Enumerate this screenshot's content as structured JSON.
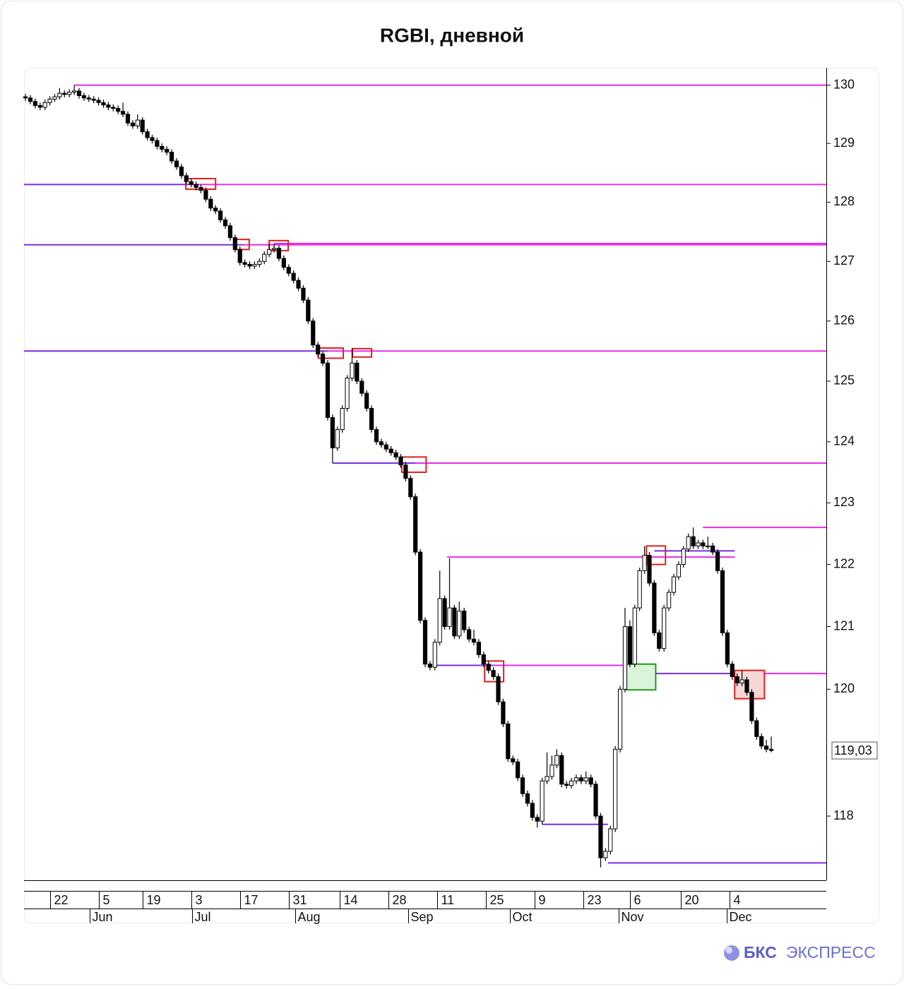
{
  "title": "RGBI, дневной",
  "brand": [
    "БКС",
    "ЭКСПРЕСС"
  ],
  "chart_data": {
    "type": "candlestick",
    "x": [
      0,
      1,
      2,
      3,
      4,
      5,
      6,
      7,
      8,
      9,
      10,
      11,
      12,
      13,
      14,
      15,
      16,
      17,
      18,
      19,
      20,
      21,
      22,
      23,
      24,
      25,
      26,
      27,
      28,
      29,
      30,
      31,
      32,
      33,
      34,
      35,
      36,
      37,
      38,
      39,
      40,
      41,
      42,
      43,
      44,
      45,
      46,
      47,
      48,
      49,
      50,
      51,
      52,
      53,
      54,
      55,
      56,
      57,
      58,
      59,
      60,
      61,
      62,
      63,
      64,
      65,
      66,
      67,
      68,
      69,
      70,
      71,
      72,
      73,
      74,
      75,
      76,
      77,
      78,
      79,
      80,
      81,
      82,
      83,
      84,
      85,
      86,
      87,
      88,
      89,
      90,
      91,
      92,
      93,
      94,
      95,
      96,
      97,
      98,
      99,
      100,
      101,
      102,
      103,
      104,
      105,
      106,
      107,
      108,
      109,
      110,
      111,
      112,
      113,
      114,
      115,
      116,
      117,
      118,
      119,
      120,
      121,
      122,
      123,
      124,
      125,
      126,
      127,
      128,
      129,
      130,
      131,
      132,
      133,
      134,
      135,
      136,
      137,
      138,
      139,
      140,
      141,
      142,
      143,
      144,
      145,
      146,
      147,
      148,
      149,
      150,
      151,
      152,
      153
    ],
    "open": [
      129.8,
      129.78,
      129.72,
      129.65,
      129.62,
      129.7,
      129.76,
      129.8,
      129.86,
      129.84,
      129.88,
      129.9,
      129.82,
      129.78,
      129.76,
      129.74,
      129.7,
      129.66,
      129.62,
      129.6,
      129.55,
      129.5,
      129.35,
      129.3,
      129.4,
      129.2,
      129.1,
      129.05,
      128.95,
      128.9,
      128.85,
      128.7,
      128.6,
      128.45,
      128.35,
      128.3,
      128.25,
      128.2,
      128.05,
      127.9,
      127.85,
      127.7,
      127.6,
      127.4,
      127.2,
      126.98,
      126.95,
      126.92,
      126.95,
      127.0,
      127.12,
      127.2,
      127.22,
      127.05,
      126.9,
      126.8,
      126.68,
      126.55,
      126.35,
      126.0,
      125.6,
      125.45,
      125.3,
      124.4,
      123.9,
      124.2,
      124.55,
      125.05,
      125.3,
      125.0,
      124.8,
      124.55,
      124.2,
      124.0,
      123.95,
      123.88,
      123.82,
      123.75,
      123.62,
      123.4,
      123.1,
      122.2,
      121.1,
      120.4,
      120.35,
      120.75,
      121.45,
      121.0,
      121.3,
      120.85,
      121.25,
      120.95,
      120.8,
      120.75,
      120.55,
      120.4,
      120.3,
      120.2,
      119.8,
      119.45,
      118.9,
      118.85,
      118.6,
      118.35,
      118.2,
      117.98,
      117.92,
      118.55,
      118.62,
      118.8,
      118.95,
      118.5,
      118.48,
      118.55,
      118.6,
      118.55,
      118.6,
      118.5,
      118.0,
      117.35,
      117.45,
      117.8,
      119.05,
      120.0,
      121.0,
      120.4,
      121.3,
      121.9,
      122.15,
      121.7,
      120.9,
      120.65,
      121.3,
      121.55,
      121.8,
      122.0,
      122.25,
      122.45,
      122.3,
      122.35,
      122.3,
      122.3,
      122.2,
      121.9,
      120.9,
      120.4,
      120.2,
      120.1,
      120.15,
      119.95,
      119.5,
      119.25,
      119.1,
      119.05
    ],
    "high": [
      129.85,
      129.83,
      129.77,
      129.7,
      129.75,
      129.81,
      129.85,
      129.95,
      129.91,
      129.93,
      130.0,
      129.95,
      129.87,
      129.83,
      129.81,
      129.79,
      129.75,
      129.71,
      129.67,
      129.65,
      129.7,
      129.55,
      129.4,
      129.5,
      129.45,
      129.25,
      129.15,
      129.1,
      129.0,
      128.95,
      128.9,
      128.75,
      128.65,
      128.5,
      128.4,
      128.35,
      128.3,
      128.25,
      128.1,
      127.95,
      127.9,
      127.75,
      127.65,
      127.45,
      127.25,
      127.03,
      127.0,
      127.0,
      127.05,
      127.17,
      127.3,
      127.3,
      127.27,
      127.1,
      126.95,
      126.85,
      126.73,
      126.6,
      126.4,
      126.05,
      125.65,
      125.5,
      125.35,
      124.45,
      124.25,
      124.6,
      125.1,
      125.55,
      125.35,
      125.05,
      124.85,
      124.6,
      124.25,
      124.05,
      124.0,
      123.93,
      123.87,
      123.8,
      123.67,
      123.45,
      123.15,
      122.25,
      121.15,
      120.45,
      120.8,
      121.9,
      121.5,
      122.1,
      121.35,
      121.4,
      121.3,
      121.0,
      120.95,
      120.8,
      120.6,
      120.45,
      120.35,
      120.25,
      119.85,
      119.5,
      118.95,
      118.9,
      118.65,
      118.4,
      118.25,
      118.03,
      118.6,
      119.0,
      118.95,
      119.05,
      119.0,
      118.55,
      118.6,
      118.65,
      118.65,
      118.7,
      118.65,
      118.55,
      118.05,
      117.5,
      117.85,
      119.1,
      120.05,
      121.3,
      121.1,
      121.35,
      121.95,
      122.3,
      122.2,
      121.75,
      120.95,
      121.35,
      121.6,
      121.85,
      122.05,
      122.3,
      122.5,
      122.6,
      122.4,
      122.4,
      122.45,
      122.35,
      122.25,
      121.95,
      120.95,
      120.45,
      120.25,
      120.3,
      120.2,
      120.0,
      119.55,
      119.3,
      119.2,
      119.25
    ],
    "low": [
      129.73,
      129.67,
      129.6,
      129.57,
      129.57,
      129.65,
      129.71,
      129.75,
      129.79,
      129.79,
      129.83,
      129.77,
      129.73,
      129.71,
      129.69,
      129.65,
      129.61,
      129.57,
      129.55,
      129.5,
      129.45,
      129.3,
      129.25,
      129.25,
      129.15,
      129.05,
      129.0,
      128.9,
      128.85,
      128.8,
      128.65,
      128.55,
      128.4,
      128.3,
      128.25,
      128.2,
      128.15,
      128.0,
      127.85,
      127.8,
      127.65,
      127.55,
      127.35,
      127.15,
      126.93,
      126.9,
      126.87,
      126.87,
      126.9,
      126.95,
      127.07,
      127.15,
      127.0,
      126.85,
      126.75,
      126.63,
      126.5,
      126.3,
      125.95,
      125.55,
      125.4,
      125.25,
      124.35,
      123.65,
      123.85,
      124.15,
      124.5,
      125.0,
      124.95,
      124.75,
      124.5,
      124.15,
      123.95,
      123.9,
      123.83,
      123.77,
      123.7,
      123.57,
      123.35,
      123.05,
      122.15,
      121.05,
      120.35,
      120.3,
      120.3,
      120.7,
      120.95,
      120.95,
      120.8,
      120.8,
      120.9,
      120.75,
      120.7,
      120.5,
      120.35,
      120.25,
      120.15,
      119.75,
      119.4,
      118.85,
      118.8,
      118.55,
      118.3,
      118.15,
      117.93,
      117.82,
      117.87,
      118.5,
      118.57,
      118.75,
      118.45,
      118.43,
      118.43,
      118.5,
      118.5,
      118.5,
      118.45,
      117.95,
      117.2,
      117.3,
      117.4,
      117.75,
      119.0,
      119.95,
      120.35,
      120.35,
      121.25,
      121.85,
      121.65,
      120.85,
      120.6,
      120.6,
      121.25,
      121.5,
      121.75,
      121.95,
      122.2,
      122.25,
      122.25,
      122.25,
      122.25,
      122.15,
      121.85,
      120.85,
      120.35,
      120.15,
      120.05,
      120.05,
      119.9,
      119.45,
      119.2,
      119.05,
      119.0,
      119.0
    ],
    "close": [
      129.78,
      129.72,
      129.65,
      129.62,
      129.7,
      129.76,
      129.8,
      129.86,
      129.84,
      129.88,
      129.9,
      129.82,
      129.78,
      129.76,
      129.74,
      129.7,
      129.66,
      129.62,
      129.6,
      129.55,
      129.5,
      129.35,
      129.3,
      129.4,
      129.2,
      129.1,
      129.05,
      128.95,
      128.9,
      128.85,
      128.7,
      128.6,
      128.45,
      128.35,
      128.3,
      128.25,
      128.2,
      128.05,
      127.9,
      127.85,
      127.7,
      127.6,
      127.4,
      127.2,
      126.98,
      126.95,
      126.92,
      126.95,
      127.0,
      127.12,
      127.2,
      127.22,
      127.05,
      126.9,
      126.8,
      126.68,
      126.55,
      126.35,
      126.0,
      125.6,
      125.45,
      125.3,
      124.4,
      123.9,
      124.2,
      124.55,
      125.05,
      125.3,
      125.0,
      124.8,
      124.55,
      124.2,
      124.0,
      123.95,
      123.88,
      123.82,
      123.75,
      123.62,
      123.4,
      123.1,
      122.2,
      121.1,
      120.4,
      120.35,
      120.75,
      121.45,
      121.0,
      121.3,
      120.85,
      121.25,
      120.95,
      120.8,
      120.75,
      120.55,
      120.4,
      120.3,
      120.2,
      119.8,
      119.45,
      118.9,
      118.85,
      118.6,
      118.35,
      118.2,
      117.98,
      117.92,
      118.55,
      118.62,
      118.8,
      118.95,
      118.5,
      118.48,
      118.55,
      118.6,
      118.55,
      118.6,
      118.5,
      118.0,
      117.35,
      117.45,
      117.8,
      119.05,
      120.0,
      121.0,
      120.4,
      121.3,
      121.9,
      122.15,
      121.7,
      120.9,
      120.65,
      121.3,
      121.55,
      121.8,
      122.0,
      122.25,
      122.45,
      122.3,
      122.35,
      122.3,
      122.3,
      122.2,
      121.9,
      120.9,
      120.4,
      120.2,
      120.1,
      120.15,
      119.95,
      119.5,
      119.25,
      119.1,
      119.05,
      119.03
    ],
    "colors": {
      "up": "#ffffff",
      "down": "#000000",
      "wick": "#000000"
    },
    "xlim": [
      -0.3,
      164.3
    ],
    "ylim": [
      117,
      130.3
    ],
    "log_y": true,
    "yticks": [
      118,
      120,
      121,
      122,
      123,
      124,
      125,
      126,
      127,
      128,
      129,
      130
    ],
    "xticks": [
      {
        "value": 5,
        "label": "22"
      },
      {
        "value": 15,
        "label": "5"
      },
      {
        "value": 24,
        "label": "19"
      },
      {
        "value": 34,
        "label": "3"
      },
      {
        "value": 44,
        "label": "17"
      },
      {
        "value": 54,
        "label": "31"
      },
      {
        "value": 64.5,
        "label": "14"
      },
      {
        "value": 74.5,
        "label": "28"
      },
      {
        "value": 84.5,
        "label": "11"
      },
      {
        "value": 94.5,
        "label": "25"
      },
      {
        "value": 104.5,
        "label": "9"
      },
      {
        "value": 114.5,
        "label": "23"
      },
      {
        "value": 124,
        "label": "6"
      },
      {
        "value": 134.5,
        "label": "20"
      },
      {
        "value": 144.5,
        "label": "4"
      }
    ],
    "month_ticks": [
      {
        "value": 13.2,
        "label": "Jun"
      },
      {
        "value": 34.2,
        "label": "Jul"
      },
      {
        "value": 55.4,
        "label": "Aug"
      },
      {
        "value": 78.5,
        "label": "Sep"
      },
      {
        "value": 99.4,
        "label": "Oct"
      },
      {
        "value": 121.7,
        "label": "Nov"
      },
      {
        "value": 143.8,
        "label": "Dec"
      }
    ],
    "last_price": {
      "value": 119.03,
      "label": "119,03"
    },
    "levels": [
      {
        "y": 130.0,
        "x": [
          10,
          164.3
        ],
        "color": "#e52ee5"
      },
      {
        "y": 128.3,
        "x": [
          -0.3,
          33.5
        ],
        "color": "#7a2ee0"
      },
      {
        "y": 128.3,
        "x": [
          33.5,
          164.3
        ],
        "color": "#e52ee5"
      },
      {
        "y": 127.28,
        "x": [
          -0.3,
          44.5
        ],
        "color": "#7a2ee0"
      },
      {
        "y": 127.28,
        "x": [
          44.5,
          164.3
        ],
        "color": "#e52ee5"
      },
      {
        "y": 127.3,
        "x": [
          51,
          164.3
        ],
        "color": "#e52ee5"
      },
      {
        "y": 125.5,
        "x": [
          -0.3,
          62
        ],
        "color": "#7a2ee0"
      },
      {
        "y": 125.5,
        "x": [
          62,
          164.3
        ],
        "color": "#e52ee5"
      },
      {
        "y": 123.65,
        "x": [
          63,
          80
        ],
        "color": "#7a2ee0"
      },
      {
        "y": 123.65,
        "x": [
          80,
          164.3
        ],
        "color": "#e52ee5"
      },
      {
        "y": 122.6,
        "x": [
          139,
          164.3
        ],
        "color": "#e52ee5"
      },
      {
        "y": 122.12,
        "x": [
          86.5,
          145.5
        ],
        "color": "#e52ee5"
      },
      {
        "y": 122.22,
        "x": [
          129,
          145.5
        ],
        "color": "#7a2ee0"
      },
      {
        "y": 120.38,
        "x": [
          84,
          96
        ],
        "color": "#7a2ee0"
      },
      {
        "y": 120.38,
        "x": [
          96,
          128
        ],
        "color": "#e52ee5"
      },
      {
        "y": 120.25,
        "x": [
          126.5,
          145.5
        ],
        "color": "#7a2ee0"
      },
      {
        "y": 120.25,
        "x": [
          145.5,
          164.3
        ],
        "color": "#e52ee5"
      },
      {
        "y": 117.87,
        "x": [
          106,
          119.5
        ],
        "color": "#7a2ee0"
      },
      {
        "y": 117.27,
        "x": [
          119.5,
          164.3
        ],
        "color": "#7a2ee0"
      }
    ],
    "boxes": [
      {
        "x": [
          32.9,
          39.0
        ],
        "y": [
          128.22,
          128.4
        ],
        "color": "#e02020",
        "fill": "none"
      },
      {
        "x": [
          43.0,
          45.9
        ],
        "y": [
          127.2,
          127.37
        ],
        "color": "#e02020",
        "fill": "none"
      },
      {
        "x": [
          50.0,
          53.9
        ],
        "y": [
          127.18,
          127.35
        ],
        "color": "#e02020",
        "fill": "none"
      },
      {
        "x": [
          60.1,
          65.2
        ],
        "y": [
          125.38,
          125.55
        ],
        "color": "#e02020",
        "fill": "none"
      },
      {
        "x": [
          67.1,
          71.0
        ],
        "y": [
          125.4,
          125.54
        ],
        "color": "#e02020",
        "fill": "none"
      },
      {
        "x": [
          77.2,
          82.2
        ],
        "y": [
          123.5,
          123.75
        ],
        "color": "#e02020",
        "fill": "none"
      },
      {
        "x": [
          94.2,
          98.1
        ],
        "y": [
          120.12,
          120.45
        ],
        "color": "#e02020",
        "fill": "none"
      },
      {
        "x": [
          127.4,
          131.3
        ],
        "y": [
          122.0,
          122.3
        ],
        "color": "#e02020",
        "fill": "none"
      },
      {
        "x": [
          123.3,
          129.3
        ],
        "y": [
          119.99,
          120.4
        ],
        "color": "#1e9a1e",
        "fill": "#d9f4d9"
      },
      {
        "x": [
          145.5,
          151.6
        ],
        "y": [
          119.85,
          120.3
        ],
        "color": "#e02020",
        "fill": "#f7d6d6"
      }
    ]
  }
}
